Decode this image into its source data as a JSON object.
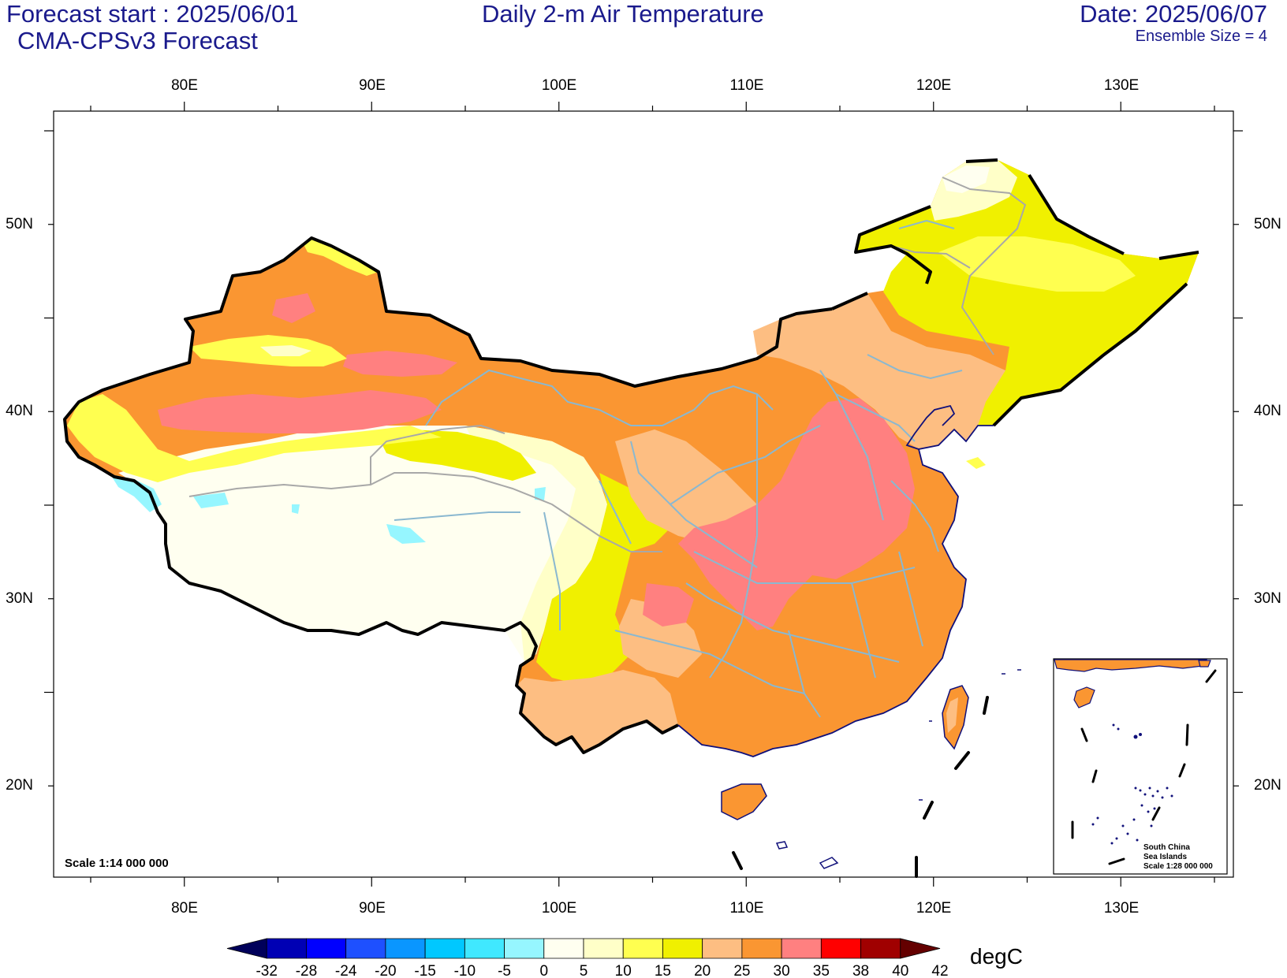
{
  "header": {
    "forecast_start": "Forecast start : 2025/06/01",
    "model": "CMA-CPSv3 Forecast",
    "title": "Daily 2-m Air Temperature",
    "date": "Date: 2025/06/07",
    "ensemble": "Ensemble Size = 4"
  },
  "axes": {
    "lon_labels": [
      "80E",
      "90E",
      "100E",
      "110E",
      "120E",
      "130E"
    ],
    "lat_labels": [
      "50N",
      "40N",
      "30N",
      "20N"
    ]
  },
  "map": {
    "scale_label": "Scale 1:14 000 000",
    "inset_lines": [
      "South China",
      "Sea Islands",
      "Scale 1:28 000 000"
    ]
  },
  "colorbar": {
    "unit": "degC",
    "labels": [
      "-32",
      "-28",
      "-24",
      "-20",
      "-15",
      "-10",
      "-5",
      "0",
      "5",
      "10",
      "15",
      "20",
      "25",
      "30",
      "35",
      "38",
      "40",
      "42"
    ],
    "colors": [
      "#00005a",
      "#0000b4",
      "#0000ff",
      "#1e50ff",
      "#0a96ff",
      "#00c8ff",
      "#40e8ff",
      "#96f6ff",
      "#fffff0",
      "#ffffc8",
      "#ffff50",
      "#f0f000",
      "#fdbe82",
      "#fa9632",
      "#ff8080",
      "#ff0000",
      "#a00000",
      "#640000"
    ]
  }
}
